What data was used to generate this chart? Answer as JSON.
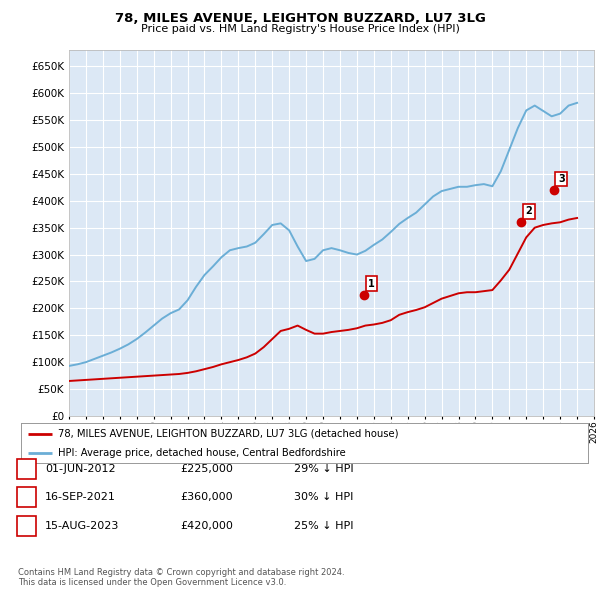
{
  "title": "78, MILES AVENUE, LEIGHTON BUZZARD, LU7 3LG",
  "subtitle": "Price paid vs. HM Land Registry's House Price Index (HPI)",
  "ylim": [
    0,
    680000
  ],
  "yticks": [
    0,
    50000,
    100000,
    150000,
    200000,
    250000,
    300000,
    350000,
    400000,
    450000,
    500000,
    550000,
    600000,
    650000
  ],
  "ytick_labels": [
    "£0",
    "£50K",
    "£100K",
    "£150K",
    "£200K",
    "£250K",
    "£300K",
    "£350K",
    "£400K",
    "£450K",
    "£500K",
    "£550K",
    "£600K",
    "£650K"
  ],
  "hpi_color": "#6baed6",
  "sale_color": "#cc0000",
  "bg_color": "#dce8f5",
  "grid_color": "#ffffff",
  "legend_label_sale": "78, MILES AVENUE, LEIGHTON BUZZARD, LU7 3LG (detached house)",
  "legend_label_hpi": "HPI: Average price, detached house, Central Bedfordshire",
  "sale_points": [
    {
      "date": 2012.42,
      "price": 225000,
      "label": "1"
    },
    {
      "date": 2021.71,
      "price": 360000,
      "label": "2"
    },
    {
      "date": 2023.62,
      "price": 420000,
      "label": "3"
    }
  ],
  "table_rows": [
    {
      "num": "1",
      "date": "01-JUN-2012",
      "price": "£225,000",
      "pct": "29% ↓ HPI"
    },
    {
      "num": "2",
      "date": "16-SEP-2021",
      "price": "£360,000",
      "pct": "30% ↓ HPI"
    },
    {
      "num": "3",
      "date": "15-AUG-2023",
      "price": "£420,000",
      "pct": "25% ↓ HPI"
    }
  ],
  "footer": "Contains HM Land Registry data © Crown copyright and database right 2024.\nThis data is licensed under the Open Government Licence v3.0.",
  "hpi_data_x": [
    1995.0,
    1995.5,
    1996.0,
    1996.5,
    1997.0,
    1997.5,
    1998.0,
    1998.5,
    1999.0,
    1999.5,
    2000.0,
    2000.5,
    2001.0,
    2001.5,
    2002.0,
    2002.5,
    2003.0,
    2003.5,
    2004.0,
    2004.5,
    2005.0,
    2005.5,
    2006.0,
    2006.5,
    2007.0,
    2007.5,
    2008.0,
    2008.5,
    2009.0,
    2009.5,
    2010.0,
    2010.5,
    2011.0,
    2011.5,
    2012.0,
    2012.5,
    2013.0,
    2013.5,
    2014.0,
    2014.5,
    2015.0,
    2015.5,
    2016.0,
    2016.5,
    2017.0,
    2017.5,
    2018.0,
    2018.5,
    2019.0,
    2019.5,
    2020.0,
    2020.5,
    2021.0,
    2021.5,
    2022.0,
    2022.5,
    2023.0,
    2023.5,
    2024.0,
    2024.5,
    2025.0
  ],
  "hpi_data_y": [
    93000,
    96000,
    100000,
    106000,
    112000,
    118000,
    125000,
    133000,
    143000,
    155000,
    168000,
    181000,
    191000,
    198000,
    215000,
    240000,
    262000,
    278000,
    295000,
    308000,
    312000,
    315000,
    322000,
    338000,
    355000,
    358000,
    345000,
    315000,
    288000,
    292000,
    308000,
    312000,
    308000,
    303000,
    300000,
    307000,
    318000,
    328000,
    342000,
    357000,
    368000,
    378000,
    393000,
    408000,
    418000,
    422000,
    426000,
    426000,
    429000,
    431000,
    427000,
    455000,
    495000,
    535000,
    568000,
    577000,
    567000,
    557000,
    562000,
    577000,
    582000
  ],
  "sale_data_x": [
    1995.0,
    1995.5,
    1996.0,
    1996.5,
    1997.0,
    1997.5,
    1998.0,
    1998.5,
    1999.0,
    1999.5,
    2000.0,
    2000.5,
    2001.0,
    2001.5,
    2002.0,
    2002.5,
    2003.0,
    2003.5,
    2004.0,
    2004.5,
    2005.0,
    2005.5,
    2006.0,
    2006.5,
    2007.0,
    2007.5,
    2008.0,
    2008.5,
    2009.0,
    2009.5,
    2010.0,
    2010.5,
    2011.0,
    2011.5,
    2012.0,
    2012.5,
    2013.0,
    2013.5,
    2014.0,
    2014.5,
    2015.0,
    2015.5,
    2016.0,
    2016.5,
    2017.0,
    2017.5,
    2018.0,
    2018.5,
    2019.0,
    2019.5,
    2020.0,
    2020.5,
    2021.0,
    2021.5,
    2022.0,
    2022.5,
    2023.0,
    2023.5,
    2024.0,
    2024.5,
    2025.0
  ],
  "sale_data_y": [
    65000,
    66000,
    67000,
    68000,
    69000,
    70000,
    71000,
    72000,
    73000,
    74000,
    75000,
    76000,
    77000,
    78000,
    80000,
    83000,
    87000,
    91000,
    96000,
    100000,
    104000,
    109000,
    116000,
    128000,
    143000,
    158000,
    162000,
    168000,
    160000,
    153000,
    153000,
    156000,
    158000,
    160000,
    163000,
    168000,
    170000,
    173000,
    178000,
    188000,
    193000,
    197000,
    202000,
    210000,
    218000,
    223000,
    228000,
    230000,
    230000,
    232000,
    234000,
    252000,
    272000,
    302000,
    332000,
    350000,
    355000,
    358000,
    360000,
    365000,
    368000
  ]
}
